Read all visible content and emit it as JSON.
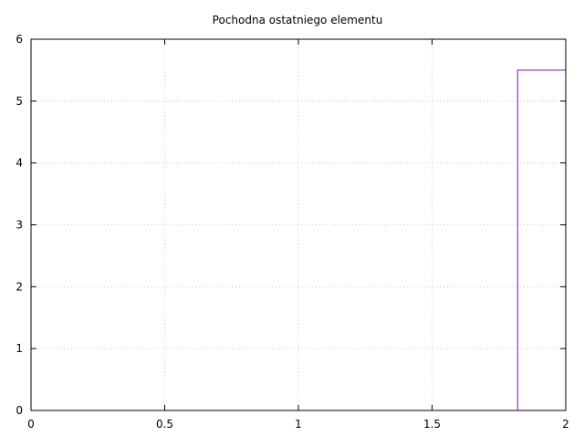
{
  "chart_data": {
    "type": "line",
    "title": "Pochodna ostatniego elementu",
    "xlabel": "",
    "ylabel": "",
    "xlim": [
      0,
      2
    ],
    "ylim": [
      0,
      6
    ],
    "x_ticks": [
      0,
      0.5,
      1,
      1.5,
      2
    ],
    "x_tick_labels": [
      "0",
      "0.5",
      "1",
      "1.5",
      "2"
    ],
    "y_ticks": [
      0,
      1,
      2,
      3,
      4,
      5,
      6
    ],
    "y_tick_labels": [
      "0",
      "1",
      "2",
      "3",
      "4",
      "5",
      "6"
    ],
    "grid": true,
    "legend": "none",
    "series": [
      {
        "color": "#9400d3",
        "x": [
          0,
          1.82,
          1.82,
          2
        ],
        "y": [
          0,
          0,
          5.5,
          5.5
        ]
      }
    ]
  }
}
